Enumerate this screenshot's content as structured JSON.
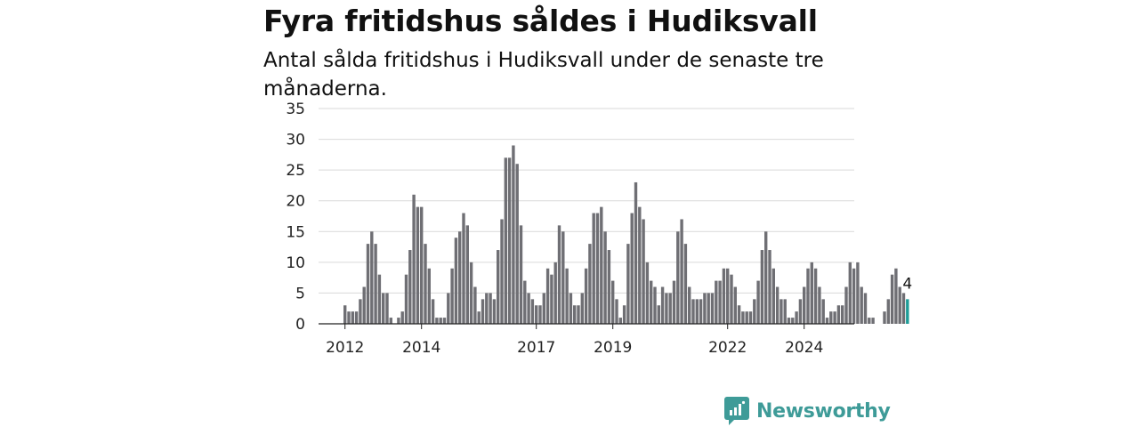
{
  "title": "Fyra fritidshus såldes i Hudiksvall",
  "subtitle": "Antal sålda fritidshus i Hudiksvall under de senaste tre månaderna.",
  "brand": "Newsworthy",
  "colors": {
    "bar": "#6f6f74",
    "highlight": "#1f9d98",
    "brand": "#3e9b98",
    "grid": "#d9d9d9"
  },
  "chart_data": {
    "type": "bar",
    "title": "Fyra fritidshus såldes i Hudiksvall",
    "subtitle": "Antal sålda fritidshus i Hudiksvall under de senaste tre månaderna.",
    "xlabel": "",
    "ylabel": "",
    "ylim": [
      0,
      35
    ],
    "yticks": [
      0,
      5,
      10,
      15,
      20,
      25,
      30,
      35
    ],
    "grid": true,
    "start": "2012-01",
    "frequency": "monthly",
    "xticks": [
      {
        "label": "2012",
        "index": 0
      },
      {
        "label": "2014",
        "index": 20
      },
      {
        "label": "2017",
        "index": 50
      },
      {
        "label": "2019",
        "index": 70
      },
      {
        "label": "2022",
        "index": 100
      },
      {
        "label": "2024",
        "index": 120
      }
    ],
    "values": [
      3,
      2,
      2,
      2,
      4,
      6,
      13,
      15,
      13,
      8,
      5,
      5,
      1,
      0,
      1,
      2,
      8,
      12,
      21,
      19,
      19,
      13,
      9,
      4,
      1,
      1,
      1,
      5,
      9,
      14,
      15,
      18,
      16,
      10,
      6,
      2,
      4,
      5,
      5,
      4,
      12,
      17,
      27,
      27,
      29,
      26,
      16,
      7,
      5,
      4,
      3,
      3,
      5,
      9,
      8,
      10,
      16,
      15,
      9,
      5,
      3,
      3,
      5,
      9,
      13,
      18,
      18,
      19,
      15,
      12,
      7,
      4,
      1,
      3,
      13,
      18,
      23,
      19,
      17,
      10,
      7,
      6,
      3,
      6,
      5,
      5,
      7,
      15,
      17,
      13,
      6,
      4,
      4,
      4,
      5,
      5,
      5,
      7,
      7,
      9,
      9,
      8,
      6,
      3,
      2,
      2,
      2,
      4,
      7,
      12,
      15,
      12,
      9,
      6,
      4,
      4,
      1,
      1,
      2,
      4,
      6,
      9,
      10,
      9,
      6,
      4,
      1,
      2,
      2,
      3,
      3,
      6,
      10,
      9,
      10,
      6,
      5,
      1,
      1,
      0,
      0,
      2,
      4,
      8,
      9,
      6,
      5,
      4
    ],
    "highlight_last": true,
    "last_label": "4"
  }
}
